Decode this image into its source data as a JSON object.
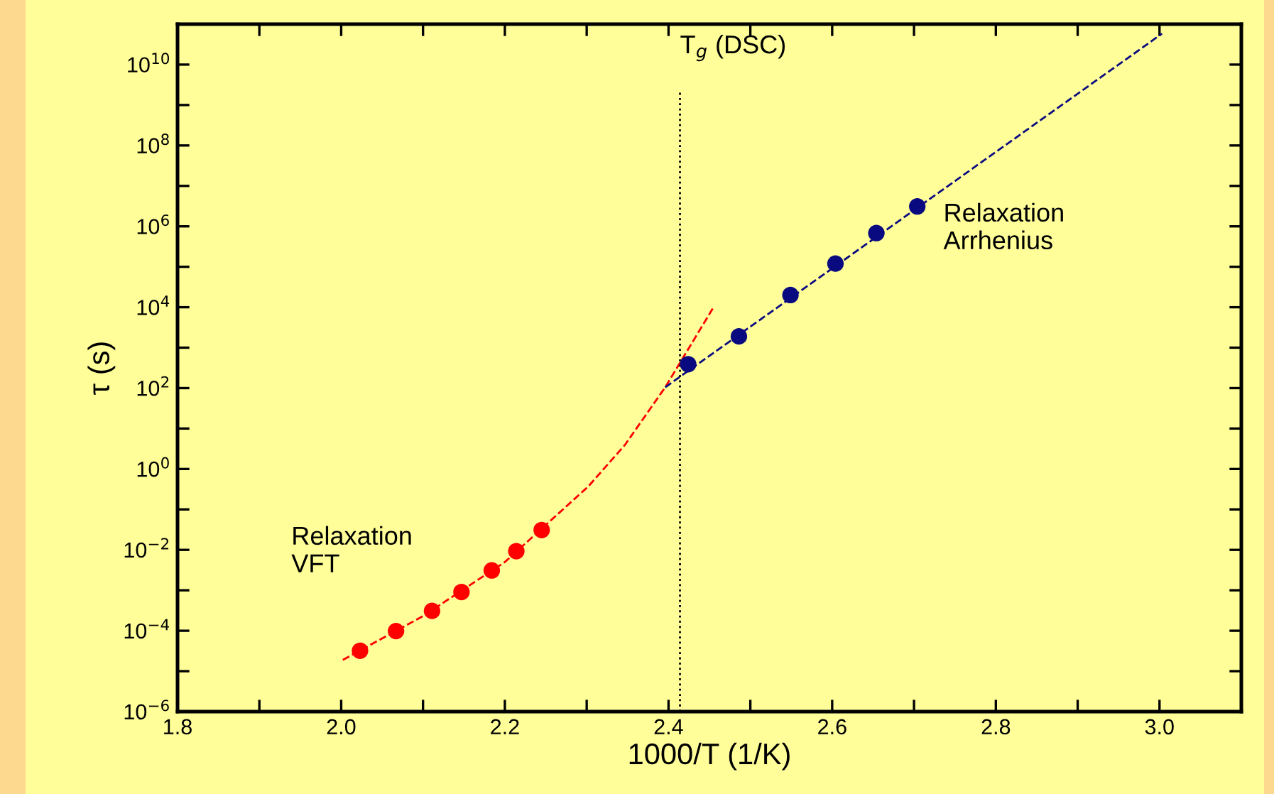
{
  "chart_data": {
    "type": "scatter",
    "xlabel": "1000/T (1/K)",
    "ylabel": "τ (s)",
    "log": "y",
    "xlim": [
      1.8,
      3.1
    ],
    "ylim": [
      1e-06,
      100000000000.0
    ],
    "xticks": [
      1.8,
      {
        "value": 1.9,
        "label": null
      },
      {
        "value": 2.0,
        "label": "2.0"
      },
      {
        "value": 2.1,
        "label": null
      },
      2.2,
      {
        "value": 2.3,
        "label": null
      },
      2.4,
      {
        "value": 2.5,
        "label": null
      },
      2.6,
      {
        "value": 2.7,
        "label": null
      },
      2.8,
      {
        "value": 2.9,
        "label": null
      },
      {
        "value": 3.0,
        "label": "3.0"
      }
    ],
    "yticks": [
      {
        "value": 1e-06,
        "label": "10$^{−6}$"
      },
      {
        "value": 1e-05,
        "label": null
      },
      {
        "value": 0.0001,
        "label": "10$^{−4}$"
      },
      {
        "value": 0.001,
        "label": null
      },
      {
        "value": 0.01,
        "label": "10$^{−2}$"
      },
      {
        "value": 0.1,
        "label": null
      },
      {
        "value": 1,
        "label": "10$^{0}$"
      },
      {
        "value": 10,
        "label": null
      },
      {
        "value": 100,
        "label": "10$^{2}$"
      },
      {
        "value": 1000,
        "label": null
      },
      {
        "value": 10000.0,
        "label": "10$^{4}$"
      },
      {
        "value": 100000.0,
        "label": null
      },
      {
        "value": 1000000.0,
        "label": "10$^{6}$"
      },
      {
        "value": 10000000.0,
        "label": null
      },
      {
        "value": 100000000.0,
        "label": "10$^{8}$"
      },
      {
        "value": 1000000000.0,
        "label": null
      },
      {
        "value": 10000000000.0,
        "label": "10$^{10}$"
      }
    ],
    "grid": false,
    "marker": "circle",
    "ref_lines": [
      {
        "axis": "x",
        "value": 2.414,
        "label": "T$_{g}$ (DSC)",
        "line_style": "dotted",
        "color": "#000000"
      }
    ],
    "series": [
      {
        "name": "Relaxation\nVFT",
        "color": "#ff0000",
        "x": [
          2.023,
          2.067,
          2.111,
          2.147,
          2.184,
          2.214,
          2.245
        ],
        "values": [
          3.2e-05,
          9.8e-05,
          0.00031,
          0.00091,
          0.0031,
          0.0093,
          0.031
        ]
      },
      {
        "type": "line",
        "color": "#ff0000",
        "line_style": "dashed",
        "marker": "none",
        "x": [
          2.002,
          2.1,
          2.2,
          2.302,
          2.347,
          2.396,
          2.455
        ],
        "values": [
          1.9e-05,
          0.00023,
          0.005,
          0.37,
          4.0,
          105,
          10000.0
        ]
      },
      {
        "name": "Relaxation\nArrhenius",
        "color": "#0a0a80",
        "x": [
          2.424,
          2.486,
          2.549,
          2.604,
          2.654,
          2.704
        ],
        "values": [
          390,
          1900,
          20000.0,
          120000.0,
          680000.0,
          3100000.0
        ]
      },
      {
        "type": "line",
        "color": "#0a0a80",
        "line_style": "dashed",
        "marker": "none",
        "x": [
          2.396,
          3.003
        ],
        "values": [
          105,
          58000000000.0
        ]
      }
    ]
  }
}
